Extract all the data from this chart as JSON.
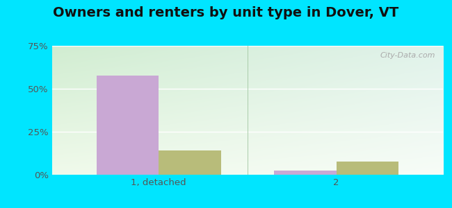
{
  "title": "Owners and renters by unit type in Dover, VT",
  "categories": [
    "1, detached",
    "2"
  ],
  "owner_values": [
    57.5,
    2.5
  ],
  "renter_values": [
    14.0,
    7.5
  ],
  "owner_color": "#c9a8d4",
  "renter_color": "#b8bc7a",
  "ylim": [
    0,
    75
  ],
  "yticks": [
    0,
    25,
    50,
    75
  ],
  "yticklabels": [
    "0%",
    "25%",
    "50%",
    "75%"
  ],
  "bar_width": 0.35,
  "outer_color": "#00e5ff",
  "watermark": "City-Data.com",
  "title_fontsize": 14,
  "tick_fontsize": 9.5,
  "legend_fontsize": 9.5
}
